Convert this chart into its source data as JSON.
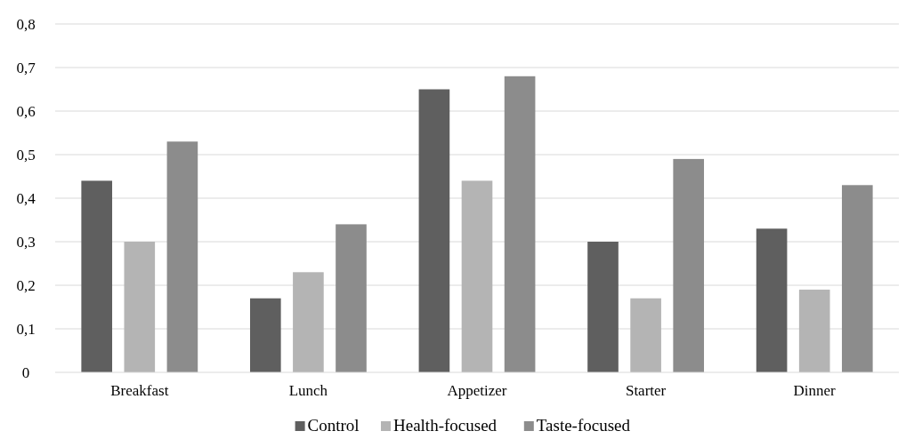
{
  "chart_data": {
    "type": "bar",
    "categories": [
      "Breakfast",
      "Lunch",
      "Appetizer",
      "Starter",
      "Dinner"
    ],
    "series": [
      {
        "name": "Control",
        "color": "#5f5f5f",
        "values": [
          0.44,
          0.17,
          0.65,
          0.3,
          0.33
        ]
      },
      {
        "name": "Health-focused",
        "color": "#b4b4b4",
        "values": [
          0.3,
          0.23,
          0.44,
          0.17,
          0.19
        ]
      },
      {
        "name": "Taste-focused",
        "color": "#8c8c8c",
        "values": [
          0.53,
          0.34,
          0.68,
          0.49,
          0.43
        ]
      }
    ],
    "ylim": [
      0,
      0.8
    ],
    "yticks": [
      0,
      {
        "value": 0.1,
        "label": "0,1"
      },
      {
        "value": 0.2,
        "label": "0,2"
      },
      {
        "value": 0.3,
        "label": "0,3"
      },
      {
        "value": 0.4,
        "label": "0,4"
      },
      {
        "value": 0.5,
        "label": "0,5"
      },
      {
        "value": 0.6,
        "label": "0,6"
      },
      {
        "value": 0.7,
        "label": "0,7"
      },
      {
        "value": 0.8,
        "label": "0,8"
      }
    ],
    "grid": "y",
    "legend": "bottom"
  }
}
